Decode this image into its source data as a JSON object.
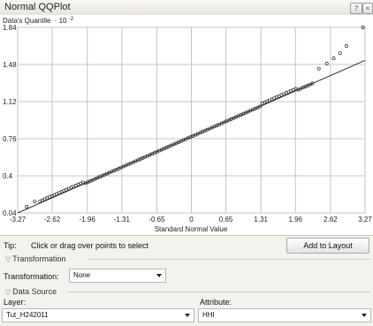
{
  "window": {
    "title": "Normal QQPlot"
  },
  "plot": {
    "ylabel": "Data's Quantile",
    "ylabel_exp": "· 10",
    "ylabel_sup": "-2",
    "xlabel": "Standard Normal Value"
  },
  "chart_data": {
    "type": "scatter",
    "title": "",
    "xlabel": "Standard Normal Value",
    "ylabel": "Data's Quantile · 10^-2",
    "x_ticks": [
      "-3.27",
      "-2.62",
      "-1.96",
      "-1.31",
      "-0.65",
      "0",
      "0.65",
      "1.31",
      "1.96",
      "2.62",
      "3.27"
    ],
    "y_ticks": [
      "0.04",
      "0.4",
      "0.76",
      "1.12",
      "1.48",
      "1.84"
    ],
    "xlim": [
      -3.27,
      3.27
    ],
    "ylim": [
      0.04,
      1.84
    ],
    "grid": true,
    "reference_line": {
      "x": [
        -3.27,
        3.27
      ],
      "y": [
        0.04,
        1.52
      ]
    },
    "outlier_points": {
      "x": [
        -3.1,
        -2.95,
        2.4,
        2.55,
        2.68,
        2.8,
        2.92,
        3.23
      ],
      "y": [
        0.1,
        0.15,
        1.44,
        1.49,
        1.54,
        1.59,
        1.66,
        1.84
      ]
    }
  },
  "tip": {
    "label": "Tip:",
    "text": "Click or drag over points to select",
    "add_to_layout": "Add to Layout"
  },
  "transformation": {
    "section": "Transformation",
    "label": "Transformation:",
    "value": "None"
  },
  "data_source": {
    "section": "Data Source",
    "layer_label": "Layer:",
    "layer_value": "Tut_H242011",
    "attribute_label": "Attribute:",
    "attribute_value": "HHI"
  }
}
